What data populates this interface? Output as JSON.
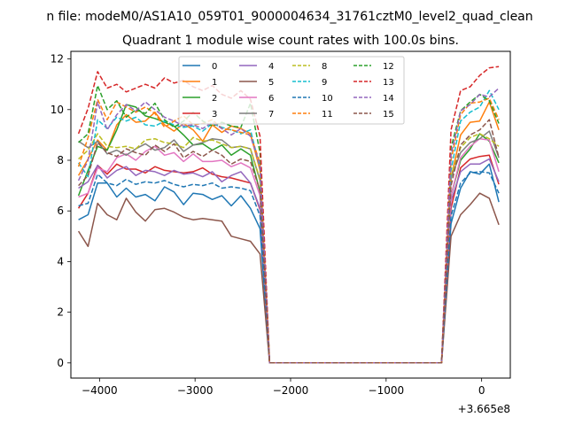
{
  "chart_data": {
    "type": "line",
    "suptitle": "n file: modeM0/AS1A10_059T01_9000004634_31761cztM0_level2_quad_clean",
    "title": "Quadrant 1 module wise count rates with 100.0s bins.",
    "xlabel": "",
    "ylabel": "",
    "offset_text": "+3.665e8",
    "xlim": [
      -4300,
      300
    ],
    "ylim": [
      -0.6,
      12.3
    ],
    "xticks": [
      -4000,
      -3000,
      -2000,
      -1000,
      0
    ],
    "xtick_labels": [
      "−4000",
      "−3000",
      "−2000",
      "−1000",
      "0"
    ],
    "yticks": [
      0,
      2,
      4,
      6,
      8,
      10,
      12
    ],
    "ytick_labels": [
      "0",
      "2",
      "4",
      "6",
      "8",
      "10",
      "12"
    ],
    "legend_position": "upper center",
    "x": [
      -4220,
      -4120,
      -4020,
      -3920,
      -3820,
      -3720,
      -3620,
      -3520,
      -3420,
      -3320,
      -3220,
      -3120,
      -3020,
      -2920,
      -2820,
      -2720,
      -2620,
      -2520,
      -2420,
      -2320,
      -2220,
      -2120,
      -2020,
      -1920,
      -1820,
      -1720,
      -1620,
      -1520,
      -1420,
      -1320,
      -1220,
      -1120,
      -1020,
      -920,
      -820,
      -720,
      -620,
      -520,
      -420,
      -320,
      -220,
      -120,
      -20,
      80,
      180
    ],
    "series": [
      {
        "name": "0",
        "color": "#1f77b4",
        "dash": false,
        "values": [
          5.65,
          5.85,
          7.1,
          7.1,
          6.55,
          6.9,
          6.55,
          6.65,
          6.4,
          6.95,
          6.75,
          6.25,
          6.7,
          6.65,
          6.45,
          6.6,
          6.2,
          6.6,
          6.1,
          5.3,
          0,
          0,
          0,
          0,
          0,
          0,
          0,
          0,
          0,
          0,
          0,
          0,
          0,
          0,
          0,
          0,
          0,
          0,
          0,
          5.5,
          6.9,
          7.55,
          7.45,
          7.85,
          6.35
        ]
      },
      {
        "name": "1",
        "color": "#ff7f0e",
        "dash": false,
        "values": [
          7.4,
          8.05,
          8.8,
          8.4,
          9.4,
          9.8,
          9.5,
          9.55,
          9.9,
          9.4,
          9.15,
          9.45,
          9.2,
          8.75,
          9.4,
          9.1,
          9.35,
          9.25,
          9.05,
          7.6,
          0,
          0,
          0,
          0,
          0,
          0,
          0,
          0,
          0,
          0,
          0,
          0,
          0,
          0,
          0,
          0,
          0,
          0,
          0,
          7.3,
          9.0,
          9.5,
          9.55,
          10.3,
          9.2
        ]
      },
      {
        "name": "2",
        "color": "#2ca02c",
        "dash": false,
        "values": [
          6.6,
          7.6,
          8.55,
          8.4,
          9.2,
          10.2,
          10.1,
          9.75,
          9.65,
          9.5,
          9.35,
          9.0,
          8.6,
          8.65,
          8.4,
          8.6,
          8.2,
          8.45,
          8.2,
          6.75,
          0,
          0,
          0,
          0,
          0,
          0,
          0,
          0,
          0,
          0,
          0,
          0,
          0,
          0,
          0,
          0,
          0,
          0,
          0,
          6.6,
          8.0,
          8.45,
          9.05,
          8.75,
          7.9
        ]
      },
      {
        "name": "3",
        "color": "#d62728",
        "dash": false,
        "values": [
          6.1,
          6.7,
          7.8,
          7.45,
          7.85,
          7.65,
          7.65,
          7.5,
          7.75,
          7.6,
          7.55,
          7.5,
          7.55,
          7.7,
          7.45,
          7.35,
          7.3,
          7.2,
          7.1,
          6.05,
          0,
          0,
          0,
          0,
          0,
          0,
          0,
          0,
          0,
          0,
          0,
          0,
          0,
          0,
          0,
          0,
          0,
          0,
          0,
          6.1,
          7.7,
          8.05,
          8.15,
          8.2,
          7.05
        ]
      },
      {
        "name": "4",
        "color": "#9467bd",
        "dash": false,
        "values": [
          6.9,
          7.15,
          7.8,
          7.3,
          7.6,
          7.75,
          7.4,
          7.6,
          7.55,
          7.4,
          7.6,
          7.45,
          7.5,
          7.35,
          7.55,
          7.15,
          7.4,
          7.55,
          7.1,
          6.1,
          0,
          0,
          0,
          0,
          0,
          0,
          0,
          0,
          0,
          0,
          0,
          0,
          0,
          0,
          0,
          0,
          0,
          0,
          0,
          6.4,
          7.55,
          7.85,
          7.85,
          8.05,
          7.15
        ]
      },
      {
        "name": "5",
        "color": "#8c564b",
        "dash": false,
        "values": [
          5.2,
          4.6,
          6.3,
          5.85,
          5.65,
          6.5,
          5.95,
          5.6,
          6.05,
          6.1,
          5.95,
          5.75,
          5.65,
          5.7,
          5.65,
          5.6,
          5.0,
          4.9,
          4.8,
          4.3,
          0,
          0,
          0,
          0,
          0,
          0,
          0,
          0,
          0,
          0,
          0,
          0,
          0,
          0,
          0,
          0,
          0,
          0,
          0,
          5.0,
          5.85,
          6.25,
          6.7,
          6.5,
          5.45
        ]
      },
      {
        "name": "6",
        "color": "#e377c2",
        "dash": false,
        "values": [
          6.55,
          6.7,
          7.7,
          7.55,
          8.1,
          8.25,
          8.0,
          8.35,
          8.55,
          8.2,
          8.3,
          7.95,
          8.25,
          7.95,
          7.95,
          8.0,
          7.75,
          7.9,
          7.7,
          6.6,
          0,
          0,
          0,
          0,
          0,
          0,
          0,
          0,
          0,
          0,
          0,
          0,
          0,
          0,
          0,
          0,
          0,
          0,
          0,
          6.6,
          8.1,
          8.55,
          8.85,
          8.8,
          7.55
        ]
      },
      {
        "name": "7",
        "color": "#7f7f7f",
        "dash": false,
        "values": [
          8.75,
          8.5,
          8.75,
          8.25,
          8.4,
          8.2,
          8.45,
          8.65,
          8.4,
          8.5,
          8.8,
          8.35,
          8.6,
          8.7,
          8.85,
          8.8,
          8.5,
          8.55,
          8.45,
          7.2,
          0,
          0,
          0,
          0,
          0,
          0,
          0,
          0,
          0,
          0,
          0,
          0,
          0,
          0,
          0,
          0,
          0,
          0,
          0,
          7.3,
          8.3,
          8.7,
          8.85,
          9.15,
          8.1
        ]
      },
      {
        "name": "8",
        "color": "#bcbd22",
        "dash": true,
        "values": [
          8.05,
          8.4,
          9.05,
          8.55,
          8.5,
          8.55,
          8.45,
          8.8,
          8.85,
          8.7,
          8.65,
          8.5,
          8.9,
          8.75,
          8.8,
          8.65,
          8.5,
          8.55,
          8.45,
          7.25,
          0,
          0,
          0,
          0,
          0,
          0,
          0,
          0,
          0,
          0,
          0,
          0,
          0,
          0,
          0,
          0,
          0,
          0,
          0,
          7.4,
          8.5,
          8.9,
          9.05,
          8.85,
          8.55
        ]
      },
      {
        "name": "9",
        "color": "#17becf",
        "dash": true,
        "values": [
          7.9,
          7.35,
          9.6,
          9.25,
          9.7,
          9.55,
          9.7,
          9.4,
          9.35,
          9.55,
          9.4,
          9.3,
          9.35,
          9.15,
          9.45,
          9.3,
          9.2,
          9.05,
          9.2,
          7.7,
          0,
          0,
          0,
          0,
          0,
          0,
          0,
          0,
          0,
          0,
          0,
          0,
          0,
          0,
          0,
          0,
          0,
          0,
          0,
          7.6,
          9.55,
          9.9,
          10.1,
          10.75,
          10.0
        ]
      },
      {
        "name": "10",
        "color": "#1f77b4",
        "dash": true,
        "values": [
          6.2,
          6.3,
          7.45,
          7.1,
          7.0,
          7.25,
          7.05,
          7.15,
          7.1,
          7.2,
          7.05,
          6.95,
          7.05,
          7.0,
          7.1,
          6.9,
          6.95,
          6.9,
          6.8,
          5.8,
          0,
          0,
          0,
          0,
          0,
          0,
          0,
          0,
          0,
          0,
          0,
          0,
          0,
          0,
          0,
          0,
          0,
          0,
          0,
          5.8,
          7.1,
          7.5,
          7.55,
          7.5,
          6.7
        ]
      },
      {
        "name": "11",
        "color": "#ff7f0e",
        "dash": true,
        "values": [
          7.75,
          8.9,
          10.4,
          9.6,
          10.3,
          10.1,
          9.9,
          10.1,
          9.85,
          9.3,
          9.55,
          9.75,
          9.4,
          9.45,
          9.6,
          9.25,
          9.2,
          9.1,
          9.0,
          7.9,
          0,
          0,
          0,
          0,
          0,
          0,
          0,
          0,
          0,
          0,
          0,
          0,
          0,
          0,
          0,
          0,
          0,
          0,
          0,
          8.0,
          9.8,
          10.25,
          10.3,
          10.45,
          9.6
        ]
      },
      {
        "name": "12",
        "color": "#2ca02c",
        "dash": true,
        "values": [
          8.7,
          9.05,
          10.95,
          10.0,
          10.35,
          9.7,
          10.0,
          9.85,
          10.25,
          9.6,
          9.3,
          9.55,
          9.9,
          9.55,
          9.35,
          9.5,
          9.35,
          9.3,
          10.25,
          8.3,
          0,
          0,
          0,
          0,
          0,
          0,
          0,
          0,
          0,
          0,
          0,
          0,
          0,
          0,
          0,
          0,
          0,
          0,
          0,
          8.5,
          9.95,
          10.3,
          10.6,
          10.35,
          9.45
        ]
      },
      {
        "name": "13",
        "color": "#d62728",
        "dash": true,
        "values": [
          9.05,
          10.05,
          11.5,
          10.85,
          11.0,
          10.7,
          10.85,
          11.0,
          10.85,
          11.25,
          11.05,
          11.15,
          10.9,
          10.75,
          10.95,
          10.6,
          10.45,
          10.75,
          10.4,
          8.95,
          0,
          0,
          0,
          0,
          0,
          0,
          0,
          0,
          0,
          0,
          0,
          0,
          0,
          0,
          0,
          0,
          0,
          0,
          0,
          9.2,
          10.75,
          10.9,
          11.35,
          11.65,
          11.7
        ]
      },
      {
        "name": "14",
        "color": "#9467bd",
        "dash": true,
        "values": [
          7.2,
          8.0,
          10.3,
          9.2,
          9.8,
          10.2,
          9.95,
          10.3,
          10.0,
          9.7,
          9.55,
          9.35,
          9.4,
          9.25,
          9.5,
          9.25,
          9.0,
          9.25,
          8.95,
          7.8,
          0,
          0,
          0,
          0,
          0,
          0,
          0,
          0,
          0,
          0,
          0,
          0,
          0,
          0,
          0,
          0,
          0,
          0,
          0,
          8.2,
          9.95,
          10.2,
          10.6,
          10.5,
          10.85
        ]
      },
      {
        "name": "15",
        "color": "#8c564b",
        "dash": true,
        "values": [
          7.0,
          7.4,
          8.7,
          8.3,
          8.15,
          8.45,
          8.3,
          8.2,
          8.6,
          8.35,
          8.65,
          8.1,
          8.35,
          8.15,
          8.4,
          8.2,
          7.85,
          8.05,
          7.95,
          6.8,
          0,
          0,
          0,
          0,
          0,
          0,
          0,
          0,
          0,
          0,
          0,
          0,
          0,
          0,
          0,
          0,
          0,
          0,
          0,
          7.0,
          8.6,
          9.0,
          9.2,
          9.6,
          8.1
        ]
      }
    ]
  }
}
